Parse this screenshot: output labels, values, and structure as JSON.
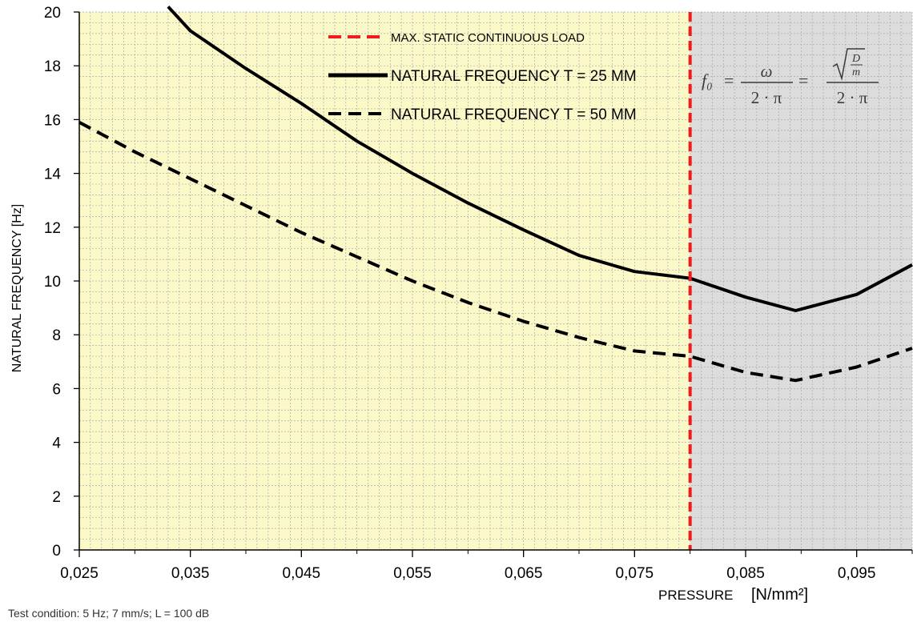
{
  "chart_data": {
    "type": "line",
    "xlabel_main": "PRESSURE",
    "xlabel_unit": "[N/mm²]",
    "ylabel": "NATURAL FREQUENCY [Hz]",
    "xlim": [
      0.025,
      0.1
    ],
    "ylim": [
      0,
      20
    ],
    "x_ticks": [
      0.025,
      0.035,
      0.045,
      0.055,
      0.065,
      0.075,
      0.085,
      0.095
    ],
    "x_tick_labels": [
      "0,025",
      "0,035",
      "0,045",
      "0,055",
      "0,065",
      "0,075",
      "0,085",
      "0,095"
    ],
    "y_ticks": [
      0,
      2,
      4,
      6,
      8,
      10,
      12,
      14,
      16,
      18,
      20
    ],
    "y_tick_labels": [
      "0",
      "2",
      "4",
      "6",
      "8",
      "10",
      "12",
      "14",
      "16",
      "18",
      "20"
    ],
    "grid": true,
    "regions": [
      {
        "from": 0.025,
        "to": 0.08,
        "color": "#fcf9c8"
      },
      {
        "from": 0.08,
        "to": 0.1,
        "color": "#dcdcdc"
      }
    ],
    "vline": {
      "x": 0.08,
      "name": "MAX. STATIC CONTINUOUS LOAD",
      "color": "#ee1c1c"
    },
    "series": [
      {
        "name": "NATURAL FREQUENCY T = 25 MM",
        "style": "solid",
        "color": "#000000",
        "points": [
          [
            0.033,
            20.2
          ],
          [
            0.035,
            19.3
          ],
          [
            0.04,
            17.9
          ],
          [
            0.045,
            16.6
          ],
          [
            0.05,
            15.2
          ],
          [
            0.055,
            14.0
          ],
          [
            0.06,
            12.9
          ],
          [
            0.065,
            11.9
          ],
          [
            0.07,
            10.95
          ],
          [
            0.075,
            10.35
          ],
          [
            0.08,
            10.1
          ],
          [
            0.085,
            9.4
          ],
          [
            0.0895,
            8.9
          ],
          [
            0.095,
            9.5
          ],
          [
            0.1,
            10.6
          ]
        ]
      },
      {
        "name": "NATURAL FREQUENCY T = 50 MM",
        "style": "dashed",
        "color": "#000000",
        "points": [
          [
            0.025,
            15.9
          ],
          [
            0.03,
            14.8
          ],
          [
            0.035,
            13.8
          ],
          [
            0.04,
            12.8
          ],
          [
            0.045,
            11.8
          ],
          [
            0.05,
            10.9
          ],
          [
            0.055,
            10.0
          ],
          [
            0.06,
            9.2
          ],
          [
            0.065,
            8.5
          ],
          [
            0.07,
            7.9
          ],
          [
            0.075,
            7.4
          ],
          [
            0.08,
            7.2
          ],
          [
            0.085,
            6.6
          ],
          [
            0.0895,
            6.3
          ],
          [
            0.095,
            6.8
          ],
          [
            0.1,
            7.5
          ]
        ]
      }
    ],
    "legend_position": "top-center",
    "formula": {
      "lhs": "f₀",
      "mid_num": "ω",
      "mid_den": "2 · π",
      "rhs_D": "D",
      "rhs_m": "m",
      "rhs_den": "2 · π",
      "eq": "="
    }
  },
  "footnote": "Test condition: 5 Hz; 7 mm/s; L = 100 dB"
}
